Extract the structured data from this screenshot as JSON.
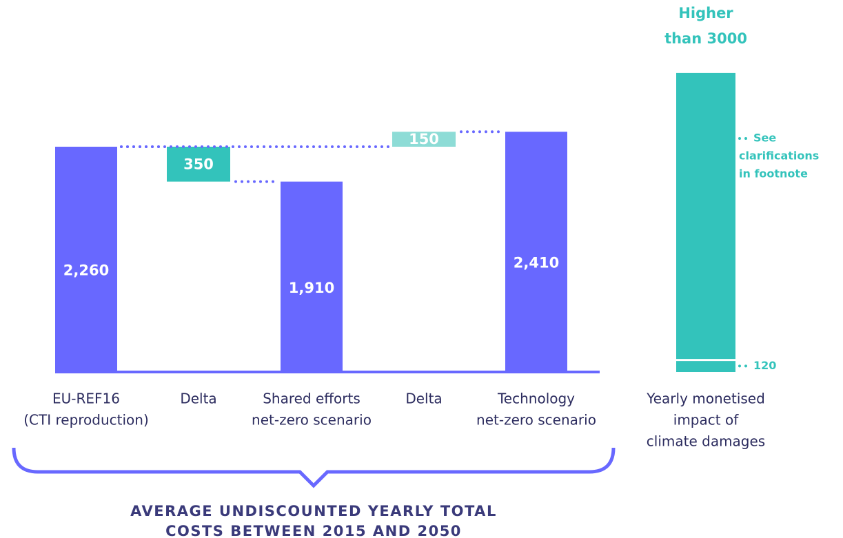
{
  "chart_data": [
    {
      "type": "waterfall",
      "categories": [
        [
          "EU-REF16",
          "(CTI reproduction)"
        ],
        [
          "Delta"
        ],
        [
          "Shared efforts",
          "net-zero scenario"
        ],
        [
          "Delta"
        ],
        [
          "Technology",
          "net-zero scenario"
        ]
      ],
      "values": [
        2260,
        -350,
        1910,
        150,
        2410
      ],
      "value_labels": [
        "2,260",
        "350",
        "1,910",
        "150",
        "2,410"
      ],
      "measure": [
        "total",
        "relative",
        "total",
        "relative",
        "total"
      ],
      "relative_to": [
        null,
        0,
        null,
        0,
        null
      ],
      "colors": {
        "total": "#6868ff",
        "decrease": "#33c3bb",
        "increase": "#8ddcd6"
      },
      "caption": [
        "AVERAGE UNDISCOUNTED YEARLY TOTAL",
        "COSTS BETWEEN 2015 AND 2050"
      ]
    },
    {
      "type": "bar",
      "categories": [
        [
          "Yearly monetised",
          "impact of",
          "climate damages"
        ]
      ],
      "values": [
        3000
      ],
      "value_labels": [
        [
          "Higher",
          "than 3000"
        ]
      ],
      "color": "#33c3bb",
      "marker": {
        "value": 120,
        "label": "120"
      },
      "annotation": [
        "See",
        "clarifications",
        "in footnote"
      ]
    }
  ]
}
